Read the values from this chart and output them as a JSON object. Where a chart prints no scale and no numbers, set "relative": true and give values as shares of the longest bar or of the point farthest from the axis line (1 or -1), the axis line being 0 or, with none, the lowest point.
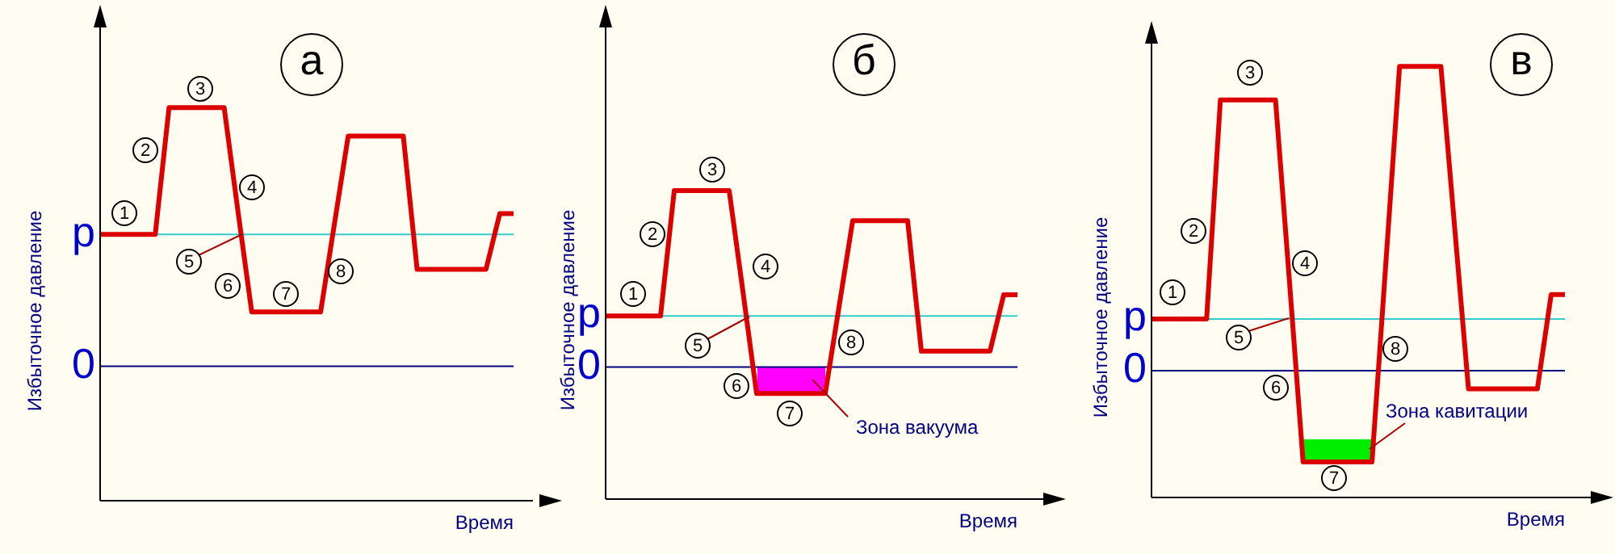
{
  "chart_data": [
    {
      "type": "line",
      "title": "а",
      "xlabel": "Время",
      "ylabel": "Избыточное давление",
      "relative": true,
      "marker": "none",
      "categories": [
        null,
        null,
        null,
        null,
        null,
        null,
        null,
        null,
        null,
        null,
        null,
        null,
        null,
        null,
        null,
        null,
        null,
        null,
        null,
        null,
        null,
        null,
        null,
        null,
        null,
        null,
        null,
        null,
        null,
        null,
        null
      ],
      "series": [
        {
          "color": "#dd0000",
          "values": [
            0.51,
            0.51,
            0.51,
            0.51,
            0.51,
            1,
            1,
            1,
            1,
            1,
            0.6,
            0.21,
            0.21,
            0.21,
            0.21,
            0.21,
            0.21,
            0.55,
            0.89,
            0.89,
            0.89,
            0.89,
            0.89,
            0.375,
            0.375,
            0.375,
            0.375,
            0.375,
            0.375,
            0.59,
            0.59
          ]
        }
      ],
      "ref_lines": [
        {
          "axis": "y",
          "value": 0,
          "label": "0",
          "color": "#000080"
        },
        {
          "axis": "y",
          "value": 0.51,
          "label": "p",
          "color": "#33cccc"
        }
      ],
      "annotations": [
        "1",
        "2",
        "3",
        "4",
        "5",
        "6",
        "7",
        "8"
      ]
    },
    {
      "type": "line",
      "title": "б",
      "xlabel": "Время",
      "ylabel": "Избыточное давление",
      "relative": true,
      "marker": "none",
      "categories": [
        null,
        null,
        null,
        null,
        null,
        null,
        null,
        null,
        null,
        null,
        null,
        null,
        null,
        null,
        null,
        null,
        null,
        null,
        null,
        null,
        null,
        null,
        null,
        null,
        null,
        null,
        null,
        null,
        null,
        null,
        null
      ],
      "series": [
        {
          "color": "#dd0000",
          "values": [
            0.29,
            0.29,
            0.29,
            0.29,
            0.29,
            1,
            1,
            1,
            1,
            1,
            0.43,
            -0.15,
            -0.15,
            -0.15,
            -0.15,
            -0.15,
            -0.15,
            0.34,
            0.83,
            0.83,
            0.83,
            0.83,
            0.83,
            0.09,
            0.09,
            0.09,
            0.09,
            0.09,
            0.09,
            0.41,
            0.41
          ]
        }
      ],
      "ref_lines": [
        {
          "axis": "y",
          "value": 0,
          "label": "0",
          "color": "#000080"
        },
        {
          "axis": "y",
          "value": 0.29,
          "label": "p",
          "color": "#33cccc"
        }
      ],
      "annotations": [
        "1",
        "2",
        "3",
        "4",
        "5",
        "6",
        "7",
        "8",
        "Зона вакуума"
      ]
    },
    {
      "type": "line",
      "title": "в",
      "xlabel": "Время",
      "ylabel": "Избыточное давление",
      "relative": true,
      "marker": "none",
      "categories": [
        null,
        null,
        null,
        null,
        null,
        null,
        null,
        null,
        null,
        null,
        null,
        null,
        null,
        null,
        null,
        null,
        null,
        null,
        null,
        null,
        null,
        null,
        null,
        null,
        null,
        null,
        null,
        null,
        null,
        null,
        null
      ],
      "series": [
        {
          "color": "#dd0000",
          "values": [
            0.17,
            0.17,
            0.17,
            0.17,
            0.17,
            0.89,
            0.89,
            0.89,
            0.89,
            0.89,
            0.3,
            -0.3,
            -0.3,
            -0.3,
            -0.3,
            -0.3,
            -0.3,
            0.35,
            1,
            1,
            1,
            1,
            0.47,
            -0.06,
            -0.06,
            -0.06,
            -0.06,
            -0.06,
            -0.06,
            0.25,
            0.25
          ]
        }
      ],
      "ref_lines": [
        {
          "axis": "y",
          "value": 0,
          "label": "0",
          "color": "#000080"
        },
        {
          "axis": "y",
          "value": 0.17,
          "label": "p",
          "color": "#33cccc"
        }
      ],
      "annotations": [
        "1",
        "2",
        "3",
        "4",
        "5",
        "6",
        "7",
        "8",
        "Зона кавитации"
      ]
    }
  ]
}
